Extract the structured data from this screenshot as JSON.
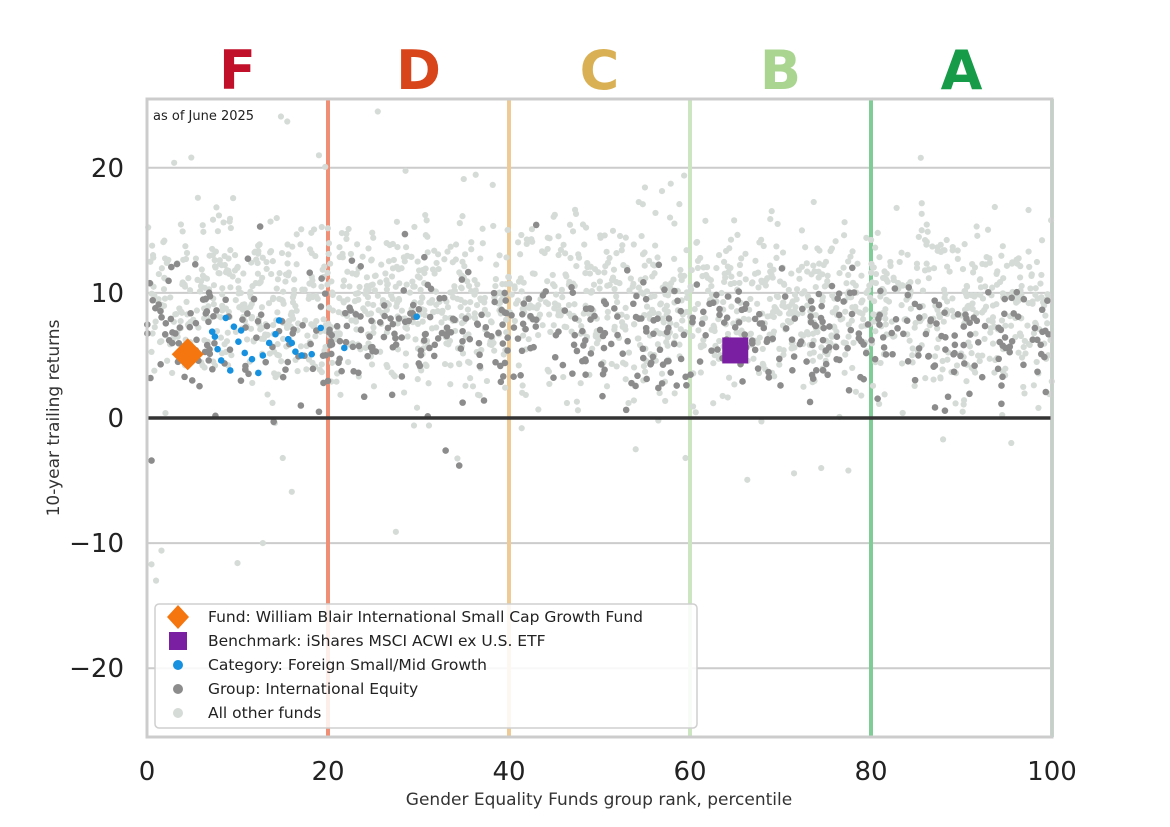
{
  "chart_data": {
    "type": "scatter",
    "annotation": "as of June 2025",
    "xlabel": "Gender Equality Funds group rank, percentile",
    "ylabel": "10-year trailing returns",
    "xlim": [
      0,
      100
    ],
    "ylim": [
      -25.5,
      25.5
    ],
    "xticks": [
      0,
      20,
      40,
      60,
      80,
      100
    ],
    "yticks": [
      -20,
      -10,
      0,
      10,
      20
    ],
    "grid": "horizontal",
    "legend_position": "lower-left",
    "grade_bands": [
      {
        "grade": "F",
        "from": 0,
        "to": 20,
        "color": "#c0102a",
        "line_color": "#ef8f76"
      },
      {
        "grade": "D",
        "from": 20,
        "to": 40,
        "color": "#d9451b",
        "line_color": "#eccb96"
      },
      {
        "grade": "C",
        "from": 40,
        "to": 60,
        "color": "#d9b154",
        "line_color": "#cbe6c0"
      },
      {
        "grade": "B",
        "from": 60,
        "to": 80,
        "color": "#a9d590",
        "line_color": "#80cc97"
      },
      {
        "grade": "A",
        "from": 80,
        "to": 100,
        "color": "#169c49",
        "line_color": "#bde0c6"
      }
    ],
    "series": [
      {
        "name": "Fund: William Blair International Small Cap Growth Fund",
        "marker": "diamond",
        "color": "#f5760e",
        "points": [
          [
            4.5,
            5.1
          ]
        ]
      },
      {
        "name": "Benchmark: iShares MSCI ACWI ex U.S. ETF",
        "marker": "square",
        "color": "#7b1fa2",
        "points": [
          [
            65,
            5.4
          ]
        ]
      },
      {
        "name": "Category: Foreign Small/Mid Growth",
        "marker": "dot",
        "color": "#1591e0",
        "points": [
          [
            7.2,
            6.9
          ],
          [
            7.8,
            5.5
          ],
          [
            8.2,
            4.6
          ],
          [
            8.7,
            8.0
          ],
          [
            9.2,
            3.8
          ],
          [
            9.6,
            7.3
          ],
          [
            10.1,
            6.1
          ],
          [
            10.4,
            7.0
          ],
          [
            10.8,
            5.2
          ],
          [
            11.6,
            4.7
          ],
          [
            12.3,
            3.6
          ],
          [
            13.5,
            6.0
          ],
          [
            14.2,
            6.7
          ],
          [
            14.6,
            7.8
          ],
          [
            15.6,
            6.3
          ],
          [
            16.4,
            5.3
          ],
          [
            17.1,
            5.0
          ],
          [
            18.2,
            5.1
          ],
          [
            19.2,
            7.2
          ],
          [
            21.8,
            5.6
          ],
          [
            29.8,
            8.1
          ],
          [
            7.5,
            6.5
          ],
          [
            12.8,
            5.0
          ],
          [
            16.0,
            6.0
          ]
        ]
      },
      {
        "name": "Group: International Equity",
        "marker": "dot",
        "color": "#8c8c8c",
        "generated": {
          "count": 520,
          "x_range": [
            0,
            100
          ],
          "y_center": 6.8,
          "y_spread": 2.3
        }
      },
      {
        "name": "All other funds",
        "marker": "dot",
        "color": "#d5dbd7",
        "generated": {
          "count": 1700,
          "x_range": [
            0,
            100
          ],
          "y_center": 9.5,
          "y_spread": 3.3
        }
      }
    ],
    "outliers_group": [
      [
        0.5,
        -3.4
      ],
      [
        5.0,
        3.0
      ],
      [
        12.5,
        15.3
      ],
      [
        14.0,
        -0.3
      ],
      [
        17.0,
        1.0
      ],
      [
        19.0,
        0.5
      ],
      [
        19.5,
        2.8
      ],
      [
        24.0,
        1.7
      ],
      [
        28.5,
        14.7
      ],
      [
        33.0,
        -2.6
      ],
      [
        34.5,
        -3.8
      ],
      [
        56.5,
        2.4
      ],
      [
        70.0,
        2.6
      ]
    ],
    "outliers_other": [
      [
        0.5,
        -11.7
      ],
      [
        1.0,
        -13.0
      ],
      [
        1.6,
        -10.6
      ],
      [
        3.0,
        20.4
      ],
      [
        10.0,
        -11.6
      ],
      [
        12.8,
        -10.0
      ],
      [
        14.8,
        24.1
      ],
      [
        15.5,
        23.7
      ],
      [
        16.0,
        -5.9
      ],
      [
        15.0,
        -3.2
      ],
      [
        19.0,
        21.0
      ],
      [
        25.5,
        24.5
      ],
      [
        27.5,
        -9.1
      ],
      [
        29.5,
        -0.6
      ],
      [
        35.0,
        19.1
      ],
      [
        47.5,
        1.3
      ],
      [
        53.8,
        1.4
      ],
      [
        54.0,
        -2.5
      ],
      [
        56.5,
        -0.2
      ],
      [
        59.5,
        -3.2
      ],
      [
        74.5,
        -4.0
      ],
      [
        77.5,
        -4.2
      ],
      [
        83.5,
        0.4
      ],
      [
        85.5,
        20.8
      ],
      [
        95.5,
        -2.0
      ],
      [
        98.5,
        0.8
      ]
    ]
  },
  "legend": {
    "fund": "Fund: William Blair International Small Cap Growth Fund",
    "benchmark": "Benchmark: iShares MSCI ACWI ex U.S. ETF",
    "category": "Category: Foreign Small/Mid Growth",
    "group": "Group: International Equity",
    "other": "All other funds"
  }
}
